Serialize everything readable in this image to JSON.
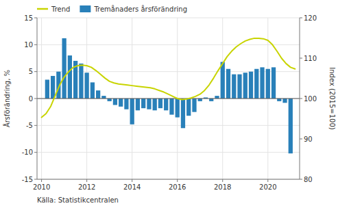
{
  "chart_data": {
    "type": "bar",
    "ylabel": "Årsförändring, %",
    "y2label": "Index (2015=100)",
    "source": "Källa: Statistikcentralen",
    "xlim": [
      2009.8,
      2021.4
    ],
    "xticks": [
      2010,
      2012,
      2014,
      2016,
      2018,
      2020
    ],
    "ylim": [
      -15,
      15
    ],
    "yticks": [
      -15,
      -10,
      -5,
      0,
      5,
      10,
      15
    ],
    "y2lim": [
      80,
      120
    ],
    "y2ticks": [
      80,
      90,
      100,
      110,
      120
    ],
    "grid": true,
    "legend": "upper left",
    "series": [
      {
        "name": "Trend",
        "type": "line",
        "color": "#c8d400",
        "x": [
          2010.0,
          2010.2,
          2010.4,
          2010.6,
          2010.8,
          2011.0,
          2011.2,
          2011.4,
          2011.6,
          2011.8,
          2012.0,
          2012.2,
          2012.4,
          2012.6,
          2012.8,
          2013.0,
          2013.2,
          2013.4,
          2013.6,
          2013.8,
          2014.0,
          2014.2,
          2014.4,
          2014.6,
          2014.8,
          2015.0,
          2015.2,
          2015.4,
          2015.6,
          2015.8,
          2016.0,
          2016.2,
          2016.4,
          2016.6,
          2016.8,
          2017.0,
          2017.2,
          2017.4,
          2017.6,
          2017.8,
          2018.0,
          2018.2,
          2018.4,
          2018.6,
          2018.8,
          2019.0,
          2019.2,
          2019.4,
          2019.6,
          2019.8,
          2020.0,
          2020.2,
          2020.4,
          2020.6,
          2020.8,
          2021.0,
          2021.2
        ],
        "values": [
          -3.5,
          -2.8,
          -1.5,
          0.5,
          2.5,
          4.0,
          5.0,
          5.8,
          6.1,
          6.2,
          6.1,
          5.8,
          5.2,
          4.5,
          3.8,
          3.2,
          2.9,
          2.7,
          2.6,
          2.5,
          2.4,
          2.3,
          2.2,
          2.1,
          2.0,
          1.8,
          1.5,
          1.2,
          0.8,
          0.4,
          0.0,
          -0.2,
          -0.1,
          0.1,
          0.4,
          0.8,
          1.5,
          2.5,
          3.8,
          5.2,
          6.5,
          7.8,
          8.8,
          9.6,
          10.2,
          10.7,
          11.0,
          11.2,
          11.2,
          11.1,
          10.8,
          10.0,
          8.8,
          7.5,
          6.5,
          5.8,
          5.5
        ]
      },
      {
        "name": "Tremånaders årsförändring",
        "type": "bar",
        "color": "#2980B9",
        "x": [
          2010.25,
          2010.5,
          2010.75,
          2011.0,
          2011.25,
          2011.5,
          2011.75,
          2012.0,
          2012.25,
          2012.5,
          2012.75,
          2013.0,
          2013.25,
          2013.5,
          2013.75,
          2014.0,
          2014.25,
          2014.5,
          2014.75,
          2015.0,
          2015.25,
          2015.5,
          2015.75,
          2016.0,
          2016.25,
          2016.5,
          2016.75,
          2017.0,
          2017.25,
          2017.5,
          2017.75,
          2018.0,
          2018.25,
          2018.5,
          2018.75,
          2019.0,
          2019.25,
          2019.5,
          2019.75,
          2020.0,
          2020.25,
          2020.5,
          2020.75,
          2021.0
        ],
        "values": [
          3.5,
          4.2,
          5.0,
          11.2,
          8.0,
          7.0,
          6.5,
          4.8,
          3.0,
          1.5,
          0.5,
          -0.5,
          -1.2,
          -1.5,
          -2.0,
          -4.8,
          -2.2,
          -1.8,
          -2.0,
          -2.2,
          -1.8,
          -2.2,
          -3.0,
          -3.5,
          -5.5,
          -3.2,
          -2.5,
          -0.5,
          0.2,
          -0.5,
          0.5,
          6.8,
          5.5,
          4.5,
          4.5,
          4.8,
          5.0,
          5.5,
          5.8,
          5.5,
          5.8,
          -0.5,
          -0.8,
          -10.2
        ]
      }
    ]
  }
}
